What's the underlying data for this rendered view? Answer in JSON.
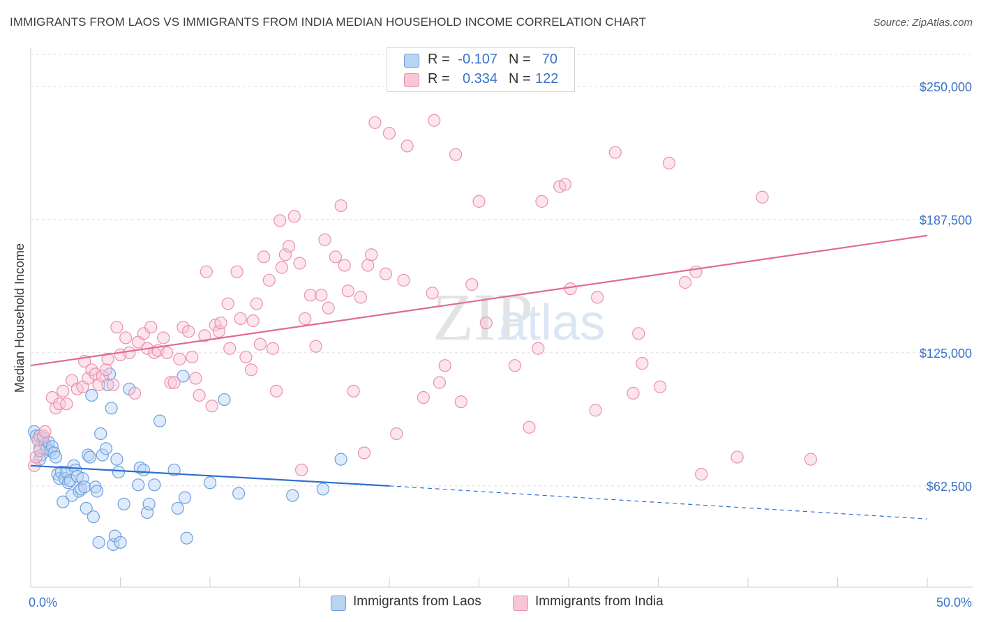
{
  "header": {
    "title": "IMMIGRANTS FROM LAOS VS IMMIGRANTS FROM INDIA MEDIAN HOUSEHOLD INCOME CORRELATION CHART",
    "source": "Source: ZipAtlas.com"
  },
  "colors": {
    "laos_fill": "#b9d3f3",
    "laos_stroke": "#6d9fe0",
    "laos_line": "#2f6fd0",
    "india_fill": "#f8c6d6",
    "india_stroke": "#e991ae",
    "india_line": "#e06a96",
    "axis_text": "#3b73c8",
    "grid": "#dcdcdc"
  },
  "legend_top": {
    "rows": [
      {
        "r_label": "R =",
        "r_value": "-0.107",
        "n_label": "N =",
        "n_value": "70"
      },
      {
        "r_label": "R =",
        "r_value": "0.334",
        "n_label": "N =",
        "n_value": "122"
      }
    ]
  },
  "legend_bottom": {
    "laos": "Immigrants from Laos",
    "india": "Immigrants from India"
  },
  "watermark": {
    "zip": "ZIP",
    "atlas": "atlas"
  },
  "chart_data": {
    "type": "scatter",
    "title": "IMMIGRANTS FROM LAOS VS IMMIGRANTS FROM INDIA MEDIAN HOUSEHOLD INCOME CORRELATION CHART",
    "xlabel": "",
    "ylabel": "Median Household Income",
    "xlim": [
      0,
      50
    ],
    "ylim": [
      15000,
      265000
    ],
    "x_tick_labels": [
      "0.0%",
      "50.0%"
    ],
    "y_ticks": [
      62500,
      125000,
      187500,
      250000
    ],
    "y_tick_labels": [
      "$62,500",
      "$125,000",
      "$187,500",
      "$250,000"
    ],
    "series": [
      {
        "name": "Immigrants from Laos",
        "r": -0.107,
        "n": 70,
        "trend": {
          "x_start": 0,
          "y_start": 72000,
          "x_solid_end": 20,
          "y_solid_end": 62500,
          "x_end": 50,
          "y_end": 47000
        },
        "points": [
          [
            0.2,
            88000
          ],
          [
            0.3,
            86000
          ],
          [
            0.4,
            84000
          ],
          [
            0.5,
            86000
          ],
          [
            0.5,
            80000
          ],
          [
            0.6,
            77000
          ],
          [
            0.7,
            85000
          ],
          [
            0.8,
            82000
          ],
          [
            0.9,
            80000
          ],
          [
            1.0,
            83000
          ],
          [
            1.1,
            79000
          ],
          [
            1.2,
            81000
          ],
          [
            1.3,
            78000
          ],
          [
            1.4,
            76000
          ],
          [
            1.5,
            68000
          ],
          [
            1.6,
            66000
          ],
          [
            1.7,
            69000
          ],
          [
            1.8,
            55000
          ],
          [
            1.9,
            66000
          ],
          [
            2.0,
            69000
          ],
          [
            2.1,
            64000
          ],
          [
            2.2,
            65000
          ],
          [
            2.3,
            58000
          ],
          [
            2.4,
            72000
          ],
          [
            2.5,
            70000
          ],
          [
            2.6,
            67000
          ],
          [
            2.7,
            60000
          ],
          [
            2.8,
            61000
          ],
          [
            2.9,
            66000
          ],
          [
            3.0,
            62000
          ],
          [
            3.1,
            52000
          ],
          [
            3.2,
            77000
          ],
          [
            3.3,
            76000
          ],
          [
            3.4,
            105000
          ],
          [
            3.5,
            48000
          ],
          [
            3.6,
            62000
          ],
          [
            3.7,
            60000
          ],
          [
            3.8,
            36000
          ],
          [
            3.9,
            87000
          ],
          [
            4.0,
            77000
          ],
          [
            4.2,
            80000
          ],
          [
            4.3,
            110000
          ],
          [
            4.4,
            115000
          ],
          [
            4.5,
            99000
          ],
          [
            4.6,
            35000
          ],
          [
            4.7,
            39000
          ],
          [
            4.8,
            75000
          ],
          [
            4.9,
            69000
          ],
          [
            5.0,
            36000
          ],
          [
            5.2,
            54000
          ],
          [
            5.5,
            108000
          ],
          [
            6.0,
            63000
          ],
          [
            6.1,
            71000
          ],
          [
            6.3,
            70000
          ],
          [
            6.5,
            50000
          ],
          [
            6.6,
            54000
          ],
          [
            6.9,
            63000
          ],
          [
            7.2,
            93000
          ],
          [
            8.0,
            70000
          ],
          [
            8.2,
            52000
          ],
          [
            8.5,
            114000
          ],
          [
            8.6,
            57000
          ],
          [
            8.7,
            38000
          ],
          [
            10.0,
            64000
          ],
          [
            10.8,
            103000
          ],
          [
            11.6,
            59000
          ],
          [
            14.6,
            58000
          ],
          [
            16.3,
            61000
          ],
          [
            17.3,
            75000
          ],
          [
            0.5,
            75000
          ]
        ]
      },
      {
        "name": "Immigrants from India",
        "r": 0.334,
        "n": 122,
        "trend": {
          "x_start": 0,
          "y_start": 119000,
          "x_end": 50,
          "y_end": 180000
        },
        "points": [
          [
            0.2,
            72000
          ],
          [
            0.3,
            76000
          ],
          [
            0.4,
            84000
          ],
          [
            0.5,
            79000
          ],
          [
            0.7,
            86000
          ],
          [
            0.8,
            88000
          ],
          [
            1.2,
            104000
          ],
          [
            1.4,
            99000
          ],
          [
            1.6,
            101000
          ],
          [
            1.8,
            107000
          ],
          [
            2.0,
            101000
          ],
          [
            2.3,
            112000
          ],
          [
            2.6,
            108000
          ],
          [
            2.9,
            109000
          ],
          [
            3.0,
            121000
          ],
          [
            3.2,
            113000
          ],
          [
            3.4,
            117000
          ],
          [
            3.6,
            115000
          ],
          [
            3.8,
            110000
          ],
          [
            4.0,
            114000
          ],
          [
            4.2,
            117000
          ],
          [
            4.3,
            122000
          ],
          [
            4.6,
            110000
          ],
          [
            4.8,
            137000
          ],
          [
            5.0,
            124000
          ],
          [
            5.3,
            132000
          ],
          [
            5.5,
            125000
          ],
          [
            5.8,
            106000
          ],
          [
            6.0,
            130000
          ],
          [
            6.3,
            134000
          ],
          [
            6.5,
            127000
          ],
          [
            6.7,
            137000
          ],
          [
            6.9,
            125000
          ],
          [
            7.1,
            126000
          ],
          [
            7.4,
            132000
          ],
          [
            7.6,
            125000
          ],
          [
            7.8,
            111000
          ],
          [
            8.0,
            111000
          ],
          [
            8.3,
            122000
          ],
          [
            8.5,
            137000
          ],
          [
            8.8,
            135000
          ],
          [
            9.0,
            123000
          ],
          [
            9.2,
            113000
          ],
          [
            9.4,
            105000
          ],
          [
            9.7,
            133000
          ],
          [
            9.8,
            163000
          ],
          [
            10.1,
            100000
          ],
          [
            10.3,
            138000
          ],
          [
            10.5,
            135000
          ],
          [
            10.6,
            139000
          ],
          [
            11.0,
            148000
          ],
          [
            11.1,
            127000
          ],
          [
            11.5,
            163000
          ],
          [
            11.7,
            141000
          ],
          [
            12.0,
            123000
          ],
          [
            12.3,
            117000
          ],
          [
            12.4,
            140000
          ],
          [
            12.6,
            148000
          ],
          [
            12.8,
            129000
          ],
          [
            13.0,
            170000
          ],
          [
            13.3,
            159000
          ],
          [
            13.5,
            127000
          ],
          [
            13.7,
            107000
          ],
          [
            13.9,
            187000
          ],
          [
            14.0,
            165000
          ],
          [
            14.2,
            171000
          ],
          [
            14.4,
            175000
          ],
          [
            14.7,
            189000
          ],
          [
            15.0,
            167000
          ],
          [
            15.1,
            70000
          ],
          [
            15.3,
            141000
          ],
          [
            15.6,
            152000
          ],
          [
            15.9,
            128000
          ],
          [
            16.2,
            152000
          ],
          [
            16.4,
            178000
          ],
          [
            16.6,
            146000
          ],
          [
            17.0,
            170000
          ],
          [
            17.3,
            194000
          ],
          [
            17.5,
            166000
          ],
          [
            17.7,
            154000
          ],
          [
            18.0,
            107000
          ],
          [
            18.4,
            151000
          ],
          [
            18.6,
            78000
          ],
          [
            18.8,
            166000
          ],
          [
            19.0,
            171000
          ],
          [
            19.2,
            233000
          ],
          [
            19.8,
            162000
          ],
          [
            20.0,
            228000
          ],
          [
            20.4,
            87000
          ],
          [
            20.8,
            159000
          ],
          [
            21.0,
            222000
          ],
          [
            21.9,
            104000
          ],
          [
            22.4,
            153000
          ],
          [
            22.5,
            234000
          ],
          [
            22.8,
            111000
          ],
          [
            23.1,
            119000
          ],
          [
            23.7,
            218000
          ],
          [
            24.0,
            102000
          ],
          [
            24.6,
            157000
          ],
          [
            25.0,
            196000
          ],
          [
            25.4,
            139000
          ],
          [
            27.0,
            119000
          ],
          [
            27.8,
            90000
          ],
          [
            28.3,
            127000
          ],
          [
            28.5,
            196000
          ],
          [
            29.5,
            203000
          ],
          [
            29.8,
            204000
          ],
          [
            30.1,
            155000
          ],
          [
            31.6,
            151000
          ],
          [
            32.6,
            219000
          ],
          [
            33.6,
            106000
          ],
          [
            33.9,
            134000
          ],
          [
            34.1,
            120000
          ],
          [
            35.1,
            109000
          ],
          [
            35.6,
            214000
          ],
          [
            36.5,
            158000
          ],
          [
            37.1,
            163000
          ],
          [
            37.4,
            68000
          ],
          [
            39.4,
            76000
          ],
          [
            40.8,
            198000
          ],
          [
            43.5,
            75000
          ],
          [
            31.5,
            98000
          ]
        ]
      }
    ]
  }
}
